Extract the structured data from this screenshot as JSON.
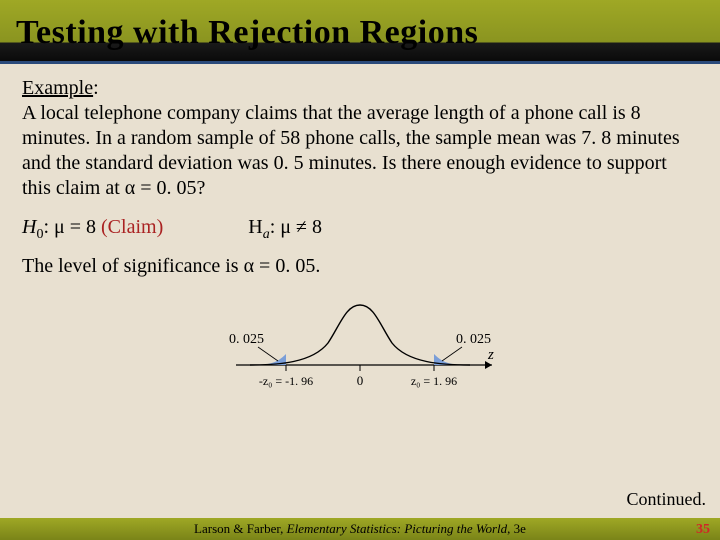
{
  "title": "Testing with Rejection Regions",
  "example_label": "Example",
  "example_text": "A local telephone company claims that the average length of a phone call is 8 minutes.  In a random sample of 58 phone calls, the sample mean was 7. 8 minutes and the standard deviation was 0. 5 minutes.  Is there enough evidence to support this claim at α = 0. 05?",
  "h0_prefix": "H",
  "h0_sub": "0",
  "h0_body": ": μ = 8   ",
  "claim_text": "(Claim)",
  "ha_prefix": "H",
  "ha_sub": "a",
  "ha_body": ": μ ≠ 8",
  "sig_line": "The level of significance is α = 0. 05.",
  "chart": {
    "left_tail_label": "0. 025",
    "right_tail_label": "0. 025",
    "left_crit_label": "-z₀ = -1. 96",
    "center_label": "0",
    "right_crit_label": "z₀ = 1. 96",
    "axis_label": "z",
    "curve_color": "#000000",
    "fill_color": "#7a9ed8",
    "curve_width": 1.4,
    "axis_color": "#000000",
    "font_family": "Times New Roman"
  },
  "continued": "Continued.",
  "footer_plain": "Larson & Farber, ",
  "footer_italic": "Elementary Statistics: Picturing the World",
  "footer_suffix": ", 3e",
  "page_num": "35"
}
